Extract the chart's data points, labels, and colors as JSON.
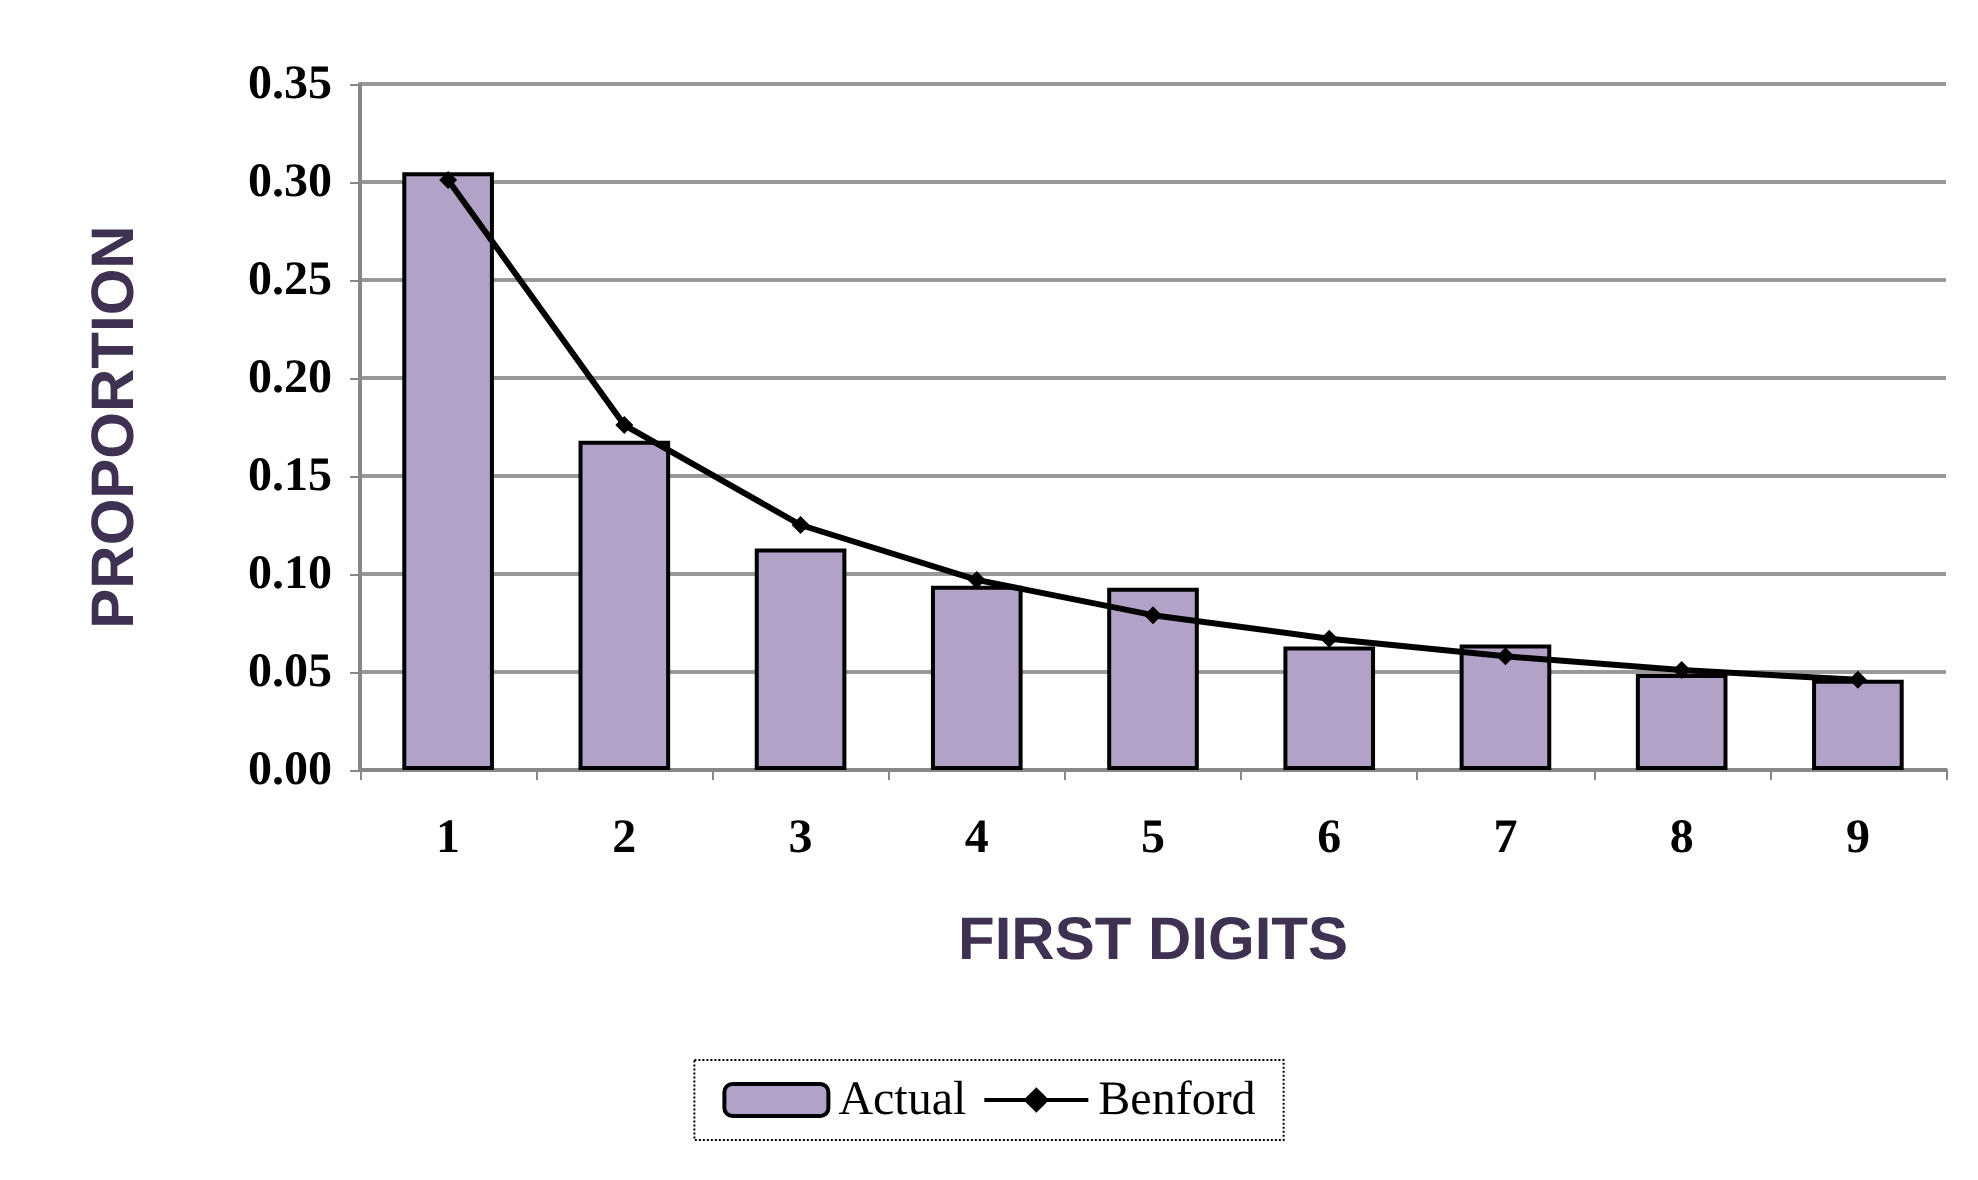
{
  "chart_data": {
    "type": "bar",
    "xlabel": "FIRST DIGITS",
    "ylabel": "PROPORTION",
    "categories": [
      "1",
      "2",
      "3",
      "4",
      "5",
      "6",
      "7",
      "8",
      "9"
    ],
    "series": [
      {
        "name": "Actual",
        "color": "#b3a2c7",
        "values": [
          0.305,
          0.168,
          0.113,
          0.094,
          0.093,
          0.063,
          0.064,
          0.049,
          0.046
        ]
      },
      {
        "name": "Benford",
        "type": "line",
        "color": "#000000",
        "marker": "diamond",
        "values": [
          0.301,
          0.176,
          0.125,
          0.097,
          0.079,
          0.067,
          0.058,
          0.051,
          0.046
        ]
      }
    ],
    "ylim": [
      0,
      0.35
    ],
    "yticks": [
      {
        "value": 0,
        "label": "0.00"
      },
      0.05,
      {
        "value": 0.1,
        "label": "0.10"
      },
      0.15,
      {
        "value": 0.2,
        "label": "0.20"
      },
      0.25,
      {
        "value": 0.3,
        "label": "0.30"
      },
      0.35
    ],
    "grid": "y",
    "legend": "bottom"
  }
}
